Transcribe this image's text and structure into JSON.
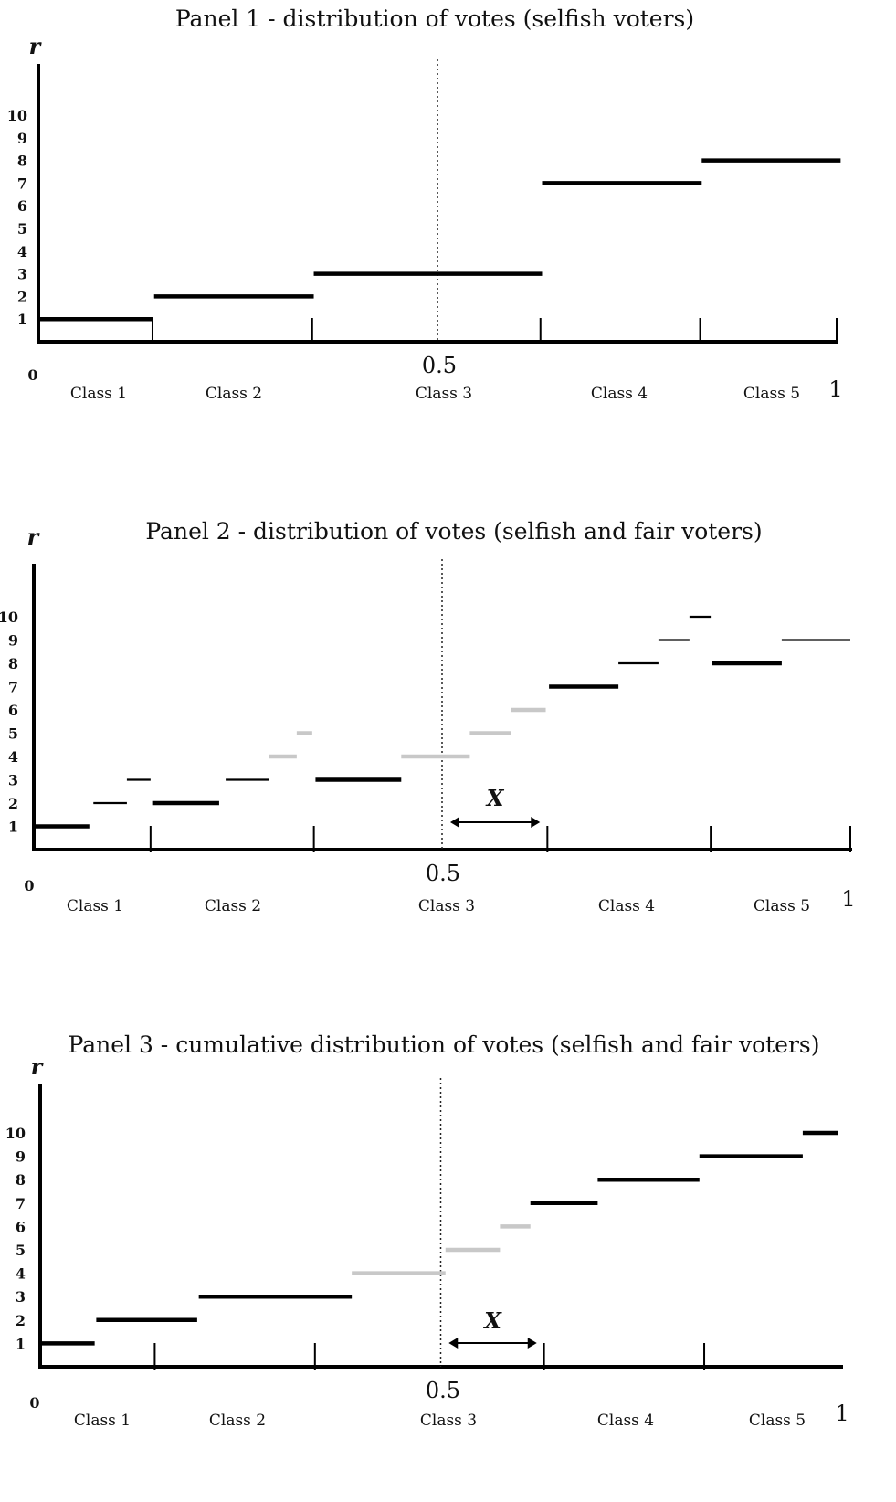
{
  "chart_data": [
    {
      "type": "line",
      "title": "Panel 1 - distribution of votes (selfish voters)",
      "ylabel": "r",
      "yticks": [
        "1",
        "2",
        "3",
        "4",
        "5",
        "6",
        "7",
        "8",
        "9",
        "10"
      ],
      "x_start": "0",
      "x_mid": "0.5",
      "x_end": "1",
      "classes": [
        "Class 1",
        "Class 2",
        "Class 3",
        "Class 4",
        "Class 5"
      ],
      "class_bounds": [
        0,
        0.143,
        0.343,
        0.629,
        0.829,
        1.0
      ],
      "xlim": [
        0,
        1
      ],
      "ylim": [
        0,
        11
      ],
      "segments": [
        {
          "x0": 0.0,
          "x1": 0.143,
          "y0": 1.0,
          "y1": 1.0,
          "color": "#000000",
          "weight": "thick"
        },
        {
          "x0": 0.145,
          "x1": 0.345,
          "y0": 2.0,
          "y1": 2.0,
          "color": "#000000",
          "weight": "thick"
        },
        {
          "x0": 0.345,
          "x1": 0.631,
          "y0": 3.0,
          "y1": 3.0,
          "color": "#000000",
          "weight": "thick"
        },
        {
          "x0": 0.631,
          "x1": 0.831,
          "y0": 7.0,
          "y1": 7.0,
          "color": "#000000",
          "weight": "thick"
        },
        {
          "x0": 0.831,
          "x1": 1.005,
          "y0": 8.0,
          "y1": 8.0,
          "color": "#000000",
          "weight": "thick"
        }
      ]
    },
    {
      "type": "line",
      "title": "Panel 2 - distribution of votes (selfish and fair voters)",
      "ylabel": "r",
      "yticks": [
        "1",
        "2",
        "3",
        "4",
        "5",
        "6",
        "7",
        "8",
        "9",
        "10"
      ],
      "x_start": "0",
      "x_mid": "0.5",
      "x_end": "1",
      "interval_label": "X",
      "interval": [
        0.51,
        0.62
      ],
      "classes": [
        "Class 1",
        "Class 2",
        "Class 3",
        "Class 4",
        "Class 5"
      ],
      "class_bounds": [
        0,
        0.143,
        0.343,
        0.629,
        0.829,
        1.0
      ],
      "xlim": [
        0,
        1
      ],
      "ylim": [
        0,
        11
      ],
      "segments": [
        {
          "x0": 0.0,
          "x1": 0.068,
          "y0": 1.0,
          "y1": 1.0,
          "color": "#000000",
          "weight": "thick"
        },
        {
          "x0": 0.073,
          "x1": 0.114,
          "y0": 2.0,
          "y1": 2.0,
          "color": "#000000",
          "weight": "thin"
        },
        {
          "x0": 0.114,
          "x1": 0.143,
          "y0": 3.0,
          "y1": 3.0,
          "color": "#000000",
          "weight": "thin"
        },
        {
          "x0": 0.145,
          "x1": 0.227,
          "y0": 2.0,
          "y1": 2.0,
          "color": "#000000",
          "weight": "thick"
        },
        {
          "x0": 0.235,
          "x1": 0.288,
          "y0": 3.0,
          "y1": 3.0,
          "color": "#000000",
          "weight": "thin"
        },
        {
          "x0": 0.288,
          "x1": 0.322,
          "y0": 4.0,
          "y1": 4.0,
          "color": "#c8c8c8",
          "weight": "thick"
        },
        {
          "x0": 0.322,
          "x1": 0.341,
          "y0": 5.0,
          "y1": 5.0,
          "color": "#c8c8c8",
          "weight": "thick"
        },
        {
          "x0": 0.345,
          "x1": 0.45,
          "y0": 3.0,
          "y1": 3.0,
          "color": "#000000",
          "weight": "thick"
        },
        {
          "x0": 0.45,
          "x1": 0.534,
          "y0": 4.0,
          "y1": 4.0,
          "color": "#c8c8c8",
          "weight": "thick"
        },
        {
          "x0": 0.534,
          "x1": 0.585,
          "y0": 5.0,
          "y1": 5.0,
          "color": "#c8c8c8",
          "weight": "thick"
        },
        {
          "x0": 0.585,
          "x1": 0.627,
          "y0": 6.0,
          "y1": 6.0,
          "color": "#c8c8c8",
          "weight": "thick"
        },
        {
          "x0": 0.631,
          "x1": 0.716,
          "y0": 7.0,
          "y1": 7.0,
          "color": "#000000",
          "weight": "thick"
        },
        {
          "x0": 0.716,
          "x1": 0.765,
          "y0": 8.0,
          "y1": 8.0,
          "color": "#000000",
          "weight": "thin"
        },
        {
          "x0": 0.765,
          "x1": 0.803,
          "y0": 9.0,
          "y1": 9.0,
          "color": "#000000",
          "weight": "thin"
        },
        {
          "x0": 0.803,
          "x1": 0.829,
          "y0": 10.0,
          "y1": 10.0,
          "color": "#000000",
          "weight": "thin"
        },
        {
          "x0": 0.831,
          "x1": 0.916,
          "y0": 8.0,
          "y1": 8.0,
          "color": "#000000",
          "weight": "thick"
        },
        {
          "x0": 0.916,
          "x1": 1.0,
          "y0": 9.0,
          "y1": 9.0,
          "color": "#000000",
          "weight": "thin"
        }
      ]
    },
    {
      "type": "line",
      "title": "Panel 3 - cumulative distribution of votes (selfish and fair voters)",
      "ylabel": "r",
      "yticks": [
        "1",
        "2",
        "3",
        "4",
        "5",
        "6",
        "7",
        "8",
        "9",
        "10"
      ],
      "x_start": "0",
      "x_mid": "0.5",
      "x_end": "1",
      "interval_label": "X",
      "interval": [
        0.51,
        0.62
      ],
      "classes": [
        "Class 1",
        "Class 2",
        "Class 3",
        "Class 4",
        "Class 5"
      ],
      "class_bounds": [
        0,
        0.143,
        0.343,
        0.629,
        0.829,
        1.0
      ],
      "xlim": [
        0,
        1
      ],
      "ylim": [
        0,
        11
      ],
      "segments": [
        {
          "x0": 0.0,
          "x1": 0.068,
          "y0": 1.0,
          "y1": 1.0,
          "color": "#000000",
          "weight": "thick"
        },
        {
          "x0": 0.07,
          "x1": 0.196,
          "y0": 2.0,
          "y1": 2.0,
          "color": "#000000",
          "weight": "thick"
        },
        {
          "x0": 0.198,
          "x1": 0.389,
          "y0": 3.0,
          "y1": 3.0,
          "color": "#000000",
          "weight": "thick"
        },
        {
          "x0": 0.389,
          "x1": 0.506,
          "y0": 4.0,
          "y1": 4.0,
          "color": "#c8c8c8",
          "weight": "thick"
        },
        {
          "x0": 0.506,
          "x1": 0.574,
          "y0": 5.0,
          "y1": 5.0,
          "color": "#c8c8c8",
          "weight": "thick"
        },
        {
          "x0": 0.574,
          "x1": 0.612,
          "y0": 6.0,
          "y1": 6.0,
          "color": "#c8c8c8",
          "weight": "thick"
        },
        {
          "x0": 0.612,
          "x1": 0.696,
          "y0": 7.0,
          "y1": 7.0,
          "color": "#000000",
          "weight": "thick"
        },
        {
          "x0": 0.696,
          "x1": 0.823,
          "y0": 8.0,
          "y1": 8.0,
          "color": "#000000",
          "weight": "thick"
        },
        {
          "x0": 0.823,
          "x1": 0.952,
          "y0": 9.0,
          "y1": 9.0,
          "color": "#000000",
          "weight": "thick"
        },
        {
          "x0": 0.952,
          "x1": 0.996,
          "y0": 10.0,
          "y1": 10.0,
          "color": "#000000",
          "weight": "thick"
        }
      ]
    }
  ]
}
